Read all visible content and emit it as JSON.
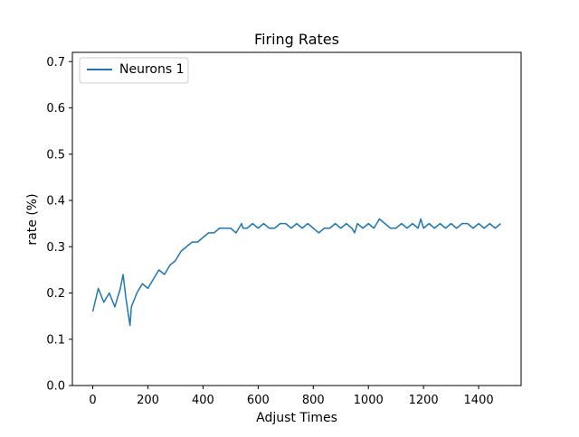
{
  "chart_data": {
    "type": "line",
    "title": "Firing Rates",
    "xlabel": "Adjust Times",
    "ylabel": "rate (%)",
    "xlim": [
      -74,
      1554
    ],
    "ylim": [
      0,
      0.72
    ],
    "xticks": [
      0,
      200,
      400,
      600,
      800,
      1000,
      1200,
      1400
    ],
    "yticks": [
      0.0,
      0.1,
      0.2,
      0.3,
      0.4,
      0.5,
      0.6,
      0.7
    ],
    "xtick_labels": [
      "0",
      "200",
      "400",
      "600",
      "800",
      "1000",
      "1200",
      "1400"
    ],
    "ytick_labels": [
      "0.0",
      "0.1",
      "0.2",
      "0.3",
      "0.4",
      "0.5",
      "0.6",
      "0.7"
    ],
    "grid": false,
    "legend_position": "top-left",
    "series": [
      {
        "name": "Neurons 1",
        "color": "#1f77b4",
        "x": [
          0,
          20,
          40,
          60,
          80,
          100,
          110,
          120,
          130,
          135,
          140,
          160,
          180,
          200,
          220,
          240,
          260,
          280,
          300,
          320,
          340,
          360,
          380,
          400,
          420,
          440,
          460,
          480,
          500,
          520,
          540,
          545,
          560,
          580,
          600,
          620,
          640,
          660,
          680,
          700,
          720,
          740,
          760,
          780,
          800,
          820,
          840,
          860,
          880,
          900,
          920,
          940,
          950,
          960,
          980,
          1000,
          1020,
          1040,
          1060,
          1080,
          1100,
          1120,
          1140,
          1160,
          1180,
          1190,
          1200,
          1220,
          1240,
          1260,
          1280,
          1300,
          1320,
          1340,
          1360,
          1380,
          1400,
          1420,
          1440,
          1460,
          1480
        ],
        "y": [
          0.16,
          0.21,
          0.18,
          0.2,
          0.17,
          0.21,
          0.24,
          0.19,
          0.15,
          0.13,
          0.17,
          0.2,
          0.22,
          0.21,
          0.23,
          0.25,
          0.24,
          0.26,
          0.27,
          0.29,
          0.3,
          0.31,
          0.31,
          0.32,
          0.33,
          0.33,
          0.34,
          0.34,
          0.34,
          0.33,
          0.35,
          0.34,
          0.34,
          0.35,
          0.34,
          0.35,
          0.34,
          0.34,
          0.35,
          0.35,
          0.34,
          0.35,
          0.34,
          0.35,
          0.34,
          0.33,
          0.34,
          0.34,
          0.35,
          0.34,
          0.35,
          0.34,
          0.33,
          0.35,
          0.34,
          0.35,
          0.34,
          0.36,
          0.35,
          0.34,
          0.34,
          0.35,
          0.34,
          0.35,
          0.34,
          0.36,
          0.34,
          0.35,
          0.34,
          0.35,
          0.34,
          0.35,
          0.34,
          0.35,
          0.35,
          0.34,
          0.35,
          0.34,
          0.35,
          0.34,
          0.35
        ]
      }
    ]
  }
}
